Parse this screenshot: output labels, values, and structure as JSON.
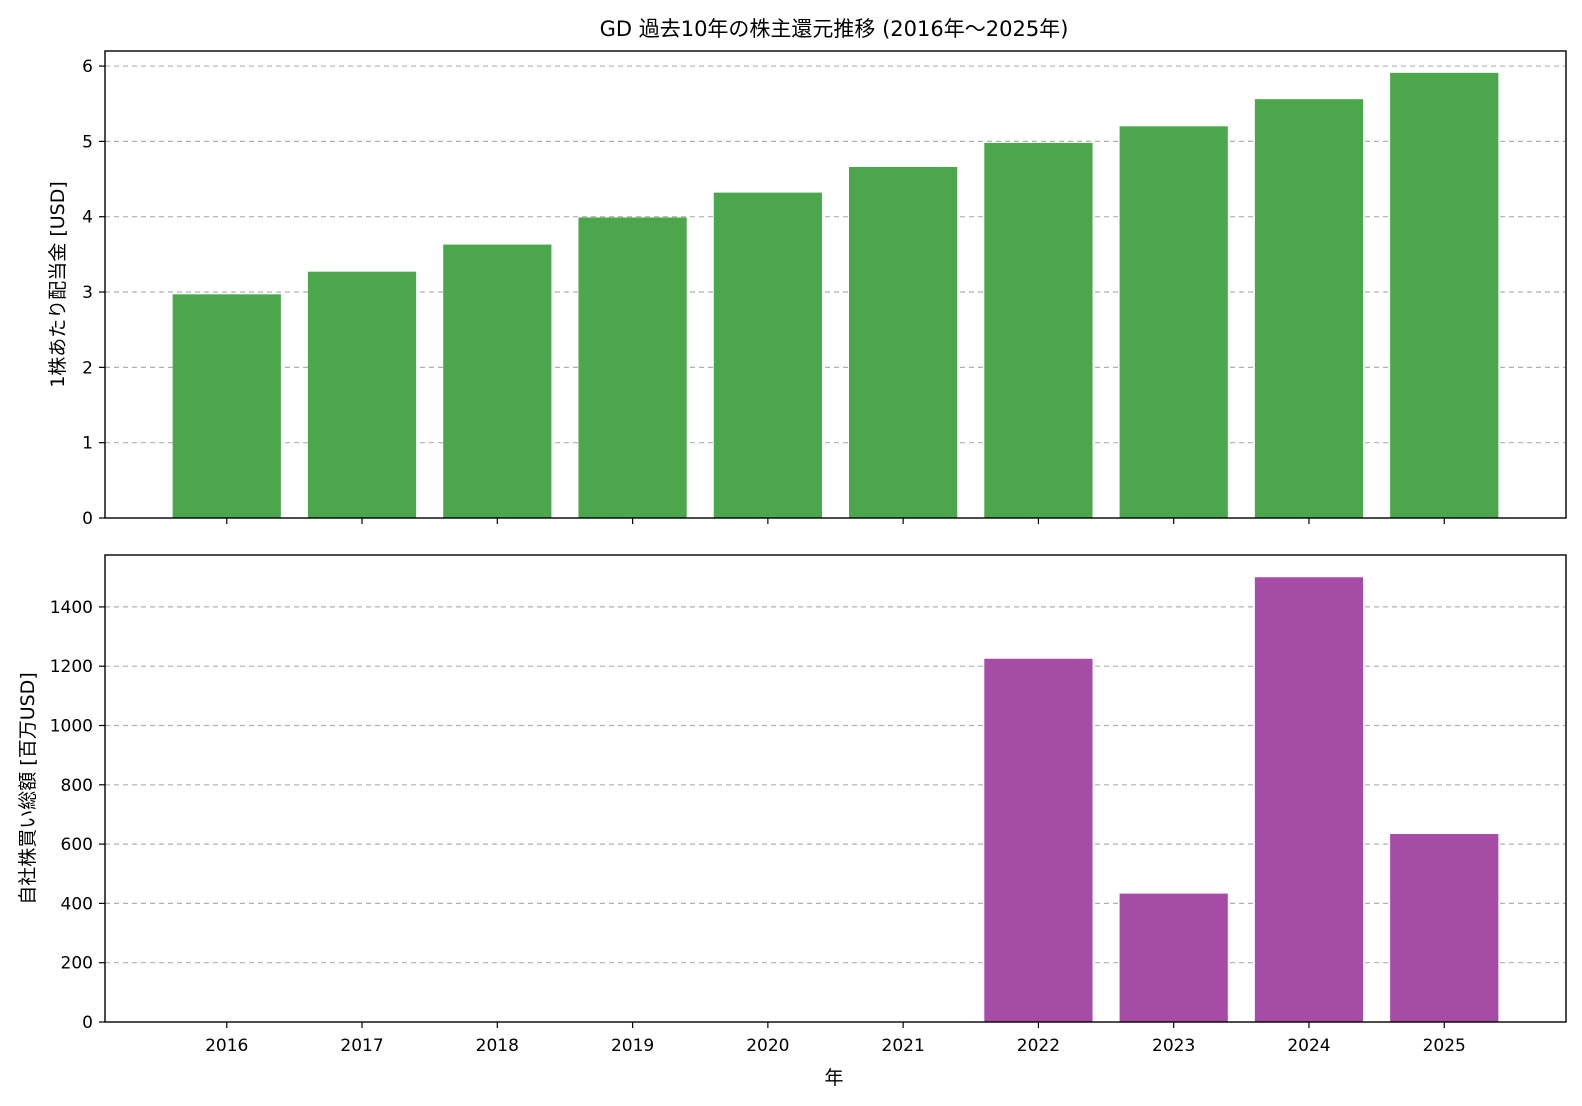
{
  "title": "GD 過去10年の株主還元推移 (2016年〜2025年)",
  "xlabel": "年",
  "chart_data": [
    {
      "type": "bar",
      "name": "dividend-per-share",
      "title": "GD 過去10年の株主還元推移 (2016年〜2025年)",
      "categories": [
        "2016",
        "2017",
        "2018",
        "2019",
        "2020",
        "2021",
        "2022",
        "2023",
        "2024",
        "2025"
      ],
      "values": [
        2.97,
        3.27,
        3.63,
        3.99,
        4.32,
        4.66,
        4.98,
        5.2,
        5.56,
        5.91
      ],
      "xlabel": "",
      "ylabel": "1株あたり配当金 [USD]",
      "ylim": [
        0,
        6.2
      ],
      "yticks": [
        0,
        1,
        2,
        3,
        4,
        5,
        6
      ],
      "color": "#4ca64c",
      "grid": "y-dashed"
    },
    {
      "type": "bar",
      "name": "share-buyback",
      "categories": [
        "2016",
        "2017",
        "2018",
        "2019",
        "2020",
        "2021",
        "2022",
        "2023",
        "2024",
        "2025"
      ],
      "values": [
        0,
        0,
        0,
        0,
        0,
        0,
        1225,
        433,
        1500,
        634
      ],
      "xlabel": "年",
      "ylabel": "自社株買い総額 [百万USD]",
      "ylim": [
        0,
        1575
      ],
      "yticks": [
        0,
        200,
        400,
        600,
        800,
        1000,
        1200,
        1400
      ],
      "color": "#a64ca6",
      "grid": "y-dashed"
    }
  ]
}
